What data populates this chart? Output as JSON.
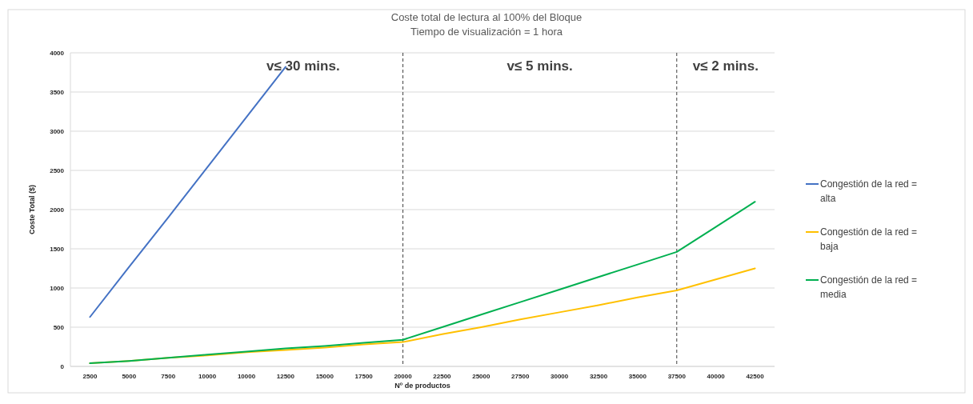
{
  "chart_data": {
    "type": "line",
    "title": "Coste total de lectura al 100% del Bloque",
    "subtitle": "Tiempo de visualización = 1 hora",
    "xlabel": "Nº de productos",
    "ylabel": "Coste Total ($)",
    "categories": [
      "2500",
      "5000",
      "7500",
      "10000",
      "10000",
      "12500",
      "15000",
      "17500",
      "20000",
      "22500",
      "25000",
      "27500",
      "30000",
      "32500",
      "35000",
      "37500",
      "40000",
      "42500"
    ],
    "series": [
      {
        "name": "Congestión de la red = alta",
        "color": "#4472c4",
        "values": [
          630,
          1270,
          1900,
          2540,
          3180,
          3820,
          null,
          null,
          null,
          null,
          null,
          null,
          null,
          null,
          null,
          null,
          null,
          null
        ]
      },
      {
        "name": "Congestión de la red = baja",
        "color": "#ffc000",
        "values": [
          40,
          70,
          110,
          140,
          180,
          210,
          240,
          280,
          310,
          410,
          500,
          600,
          690,
          780,
          880,
          970,
          1110,
          1250
        ]
      },
      {
        "name": "Congestión de la red = media",
        "color": "#00b050",
        "values": [
          40,
          70,
          110,
          150,
          190,
          230,
          260,
          300,
          340,
          500,
          660,
          820,
          980,
          1140,
          1300,
          1460,
          1780,
          2100
        ]
      }
    ],
    "ylim": [
      0,
      4000
    ],
    "yticks": [
      0,
      500,
      1000,
      1500,
      2000,
      2500,
      3000,
      3500,
      4000
    ],
    "grid": "y",
    "legend": "right",
    "ref_lines": [
      {
        "axis": "x",
        "value": "20000",
        "label": null,
        "color": "#404040",
        "line_style": "dashed"
      },
      {
        "axis": "x",
        "value": "37500",
        "label": null,
        "color": "#404040",
        "line_style": "dashed"
      }
    ],
    "annotations": [
      "v≤ 30 mins.",
      "v≤ 5 mins.",
      "v≤ 2 mins."
    ]
  }
}
